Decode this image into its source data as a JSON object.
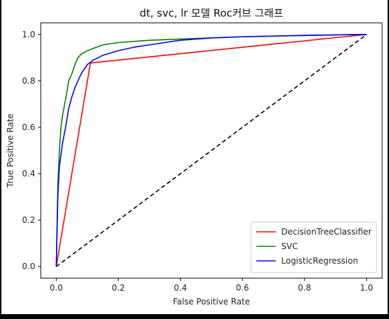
{
  "chart_data": {
    "type": "line",
    "title": "dt, svc, lr 모델 Roc커브 그래프",
    "xlabel": "False Positive Rate",
    "ylabel": "True Positive Rate",
    "xlim": [
      -0.05,
      1.05
    ],
    "ylim": [
      -0.05,
      1.05
    ],
    "xticks": [
      "0.0",
      "0.2",
      "0.4",
      "0.6",
      "0.8",
      "1.0"
    ],
    "yticks": [
      "0.0",
      "0.2",
      "0.4",
      "0.6",
      "0.8",
      "1.0"
    ],
    "grid": false,
    "legend_position": "lower-right",
    "series": [
      {
        "name": "DecisionTreeClassifier",
        "color": "#ff0000",
        "x": [
          0.0,
          0.11,
          1.0
        ],
        "y": [
          0.0,
          0.877,
          1.0
        ]
      },
      {
        "name": "SVC",
        "color": "#008000",
        "x": [
          0.0,
          0.005,
          0.01,
          0.015,
          0.02,
          0.03,
          0.04,
          0.05,
          0.06,
          0.07,
          0.08,
          0.1,
          0.12,
          0.15,
          0.2,
          0.3,
          0.4,
          0.5,
          0.6,
          0.7,
          0.8,
          0.9,
          1.0
        ],
        "y": [
          0.0,
          0.35,
          0.5,
          0.6,
          0.65,
          0.72,
          0.8,
          0.83,
          0.87,
          0.9,
          0.915,
          0.93,
          0.94,
          0.955,
          0.965,
          0.975,
          0.98,
          0.985,
          0.99,
          0.993,
          0.995,
          0.998,
          1.0
        ]
      },
      {
        "name": "LogisticRegression",
        "color": "#0000ff",
        "x": [
          0.0,
          0.005,
          0.01,
          0.02,
          0.03,
          0.04,
          0.05,
          0.06,
          0.07,
          0.08,
          0.1,
          0.12,
          0.15,
          0.2,
          0.25,
          0.3,
          0.4,
          0.5,
          0.6,
          0.7,
          0.8,
          0.9,
          1.0
        ],
        "y": [
          0.0,
          0.3,
          0.43,
          0.53,
          0.6,
          0.68,
          0.73,
          0.77,
          0.8,
          0.83,
          0.87,
          0.89,
          0.91,
          0.93,
          0.945,
          0.955,
          0.975,
          0.985,
          0.99,
          0.993,
          0.996,
          0.998,
          1.0
        ]
      },
      {
        "color": "#000000",
        "style": "dashed",
        "x": [
          0.0,
          1.0
        ],
        "y": [
          0.0,
          1.0
        ]
      }
    ]
  }
}
